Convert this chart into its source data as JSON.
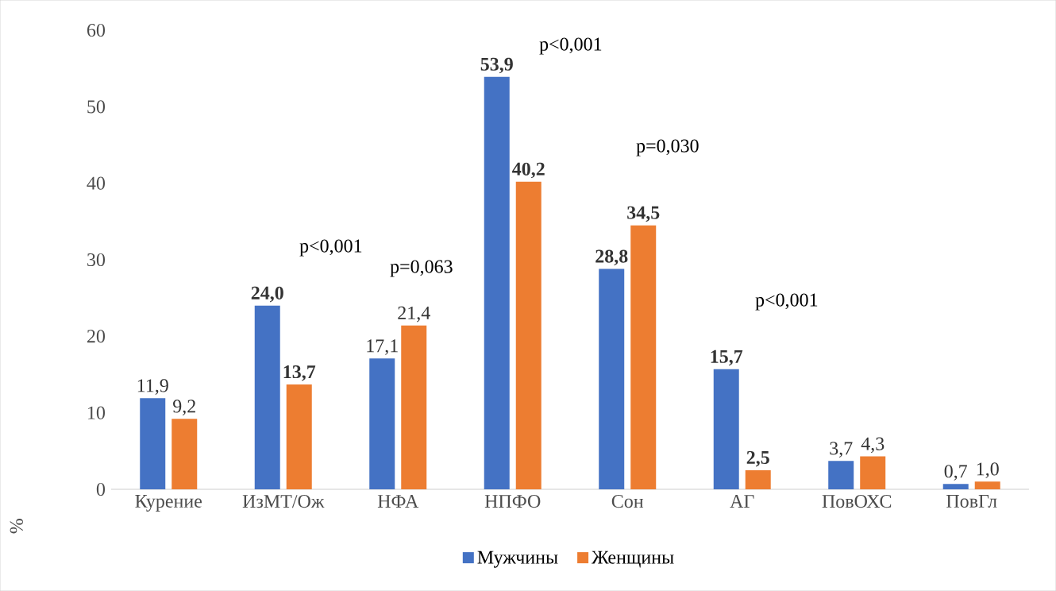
{
  "chart_data": {
    "type": "bar",
    "ylabel": "%",
    "categories": [
      "Курение",
      "ИзМТ/Ож",
      "НФА",
      "НПФО",
      "Сон",
      "АГ",
      "ПовОХС",
      "ПовГл"
    ],
    "series": [
      {
        "name": "Мужчины",
        "color": "#4472c4",
        "values": [
          11.9,
          24.0,
          17.1,
          53.9,
          28.8,
          15.7,
          3.7,
          0.7
        ],
        "value_labels": [
          "11,9",
          "**24,0**",
          "17,1",
          "**53,9**",
          "**28,8**",
          "**15,7**",
          "3,7",
          "0,7"
        ]
      },
      {
        "name": "Женщины",
        "color": "#ed7d31",
        "values": [
          9.2,
          13.7,
          21.4,
          40.2,
          34.5,
          2.5,
          4.3,
          1.0
        ],
        "value_labels": [
          "9,2",
          "**13,7**",
          "21,4",
          "**40,2**",
          "**34,5**",
          "**2,5**",
          "4,3",
          "1,0"
        ]
      }
    ],
    "ylim": [
      0,
      60
    ],
    "yticks": [
      0,
      10,
      20,
      30,
      40,
      50,
      60
    ],
    "grid": false,
    "legend": "bottom",
    "annotations": [
      "p<0,001",
      "p=0,063",
      "p<0,001",
      "p=0,030",
      "p<0,001"
    ]
  }
}
